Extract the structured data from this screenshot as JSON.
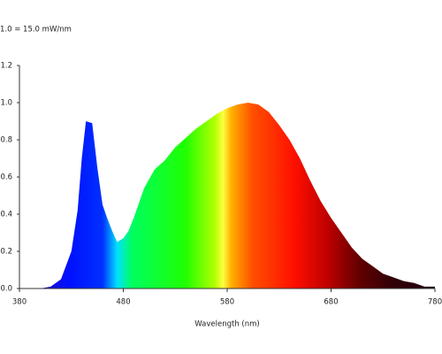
{
  "chart_data": {
    "type": "area",
    "annotation": "1.0 = 15.0 mW/nm",
    "xlabel": "Wavelength (nm)",
    "x": [
      380,
      400,
      410,
      420,
      430,
      436,
      440,
      444,
      450,
      455,
      460,
      465,
      470,
      474,
      480,
      485,
      490,
      500,
      510,
      520,
      530,
      540,
      550,
      560,
      570,
      580,
      590,
      600,
      610,
      620,
      630,
      640,
      650,
      660,
      670,
      680,
      690,
      700,
      710,
      720,
      730,
      740,
      750,
      760,
      770,
      780
    ],
    "values": [
      0,
      0,
      0.01,
      0.05,
      0.2,
      0.42,
      0.7,
      0.9,
      0.89,
      0.65,
      0.45,
      0.37,
      0.3,
      0.25,
      0.27,
      0.31,
      0.38,
      0.54,
      0.64,
      0.69,
      0.76,
      0.81,
      0.86,
      0.9,
      0.94,
      0.97,
      0.99,
      1.0,
      0.99,
      0.95,
      0.88,
      0.8,
      0.7,
      0.58,
      0.47,
      0.38,
      0.3,
      0.22,
      0.16,
      0.12,
      0.08,
      0.06,
      0.04,
      0.03,
      0.01,
      0.01
    ],
    "xlim": [
      380,
      780
    ],
    "xticks": [
      380,
      480,
      580,
      680,
      780
    ],
    "ylim": [
      0,
      1.2
    ],
    "yticks": [
      {
        "value": 0,
        "label": "0.0"
      },
      0.2,
      0.4,
      0.6,
      0.8,
      {
        "value": 1,
        "label": "1.0"
      },
      1.2
    ]
  }
}
